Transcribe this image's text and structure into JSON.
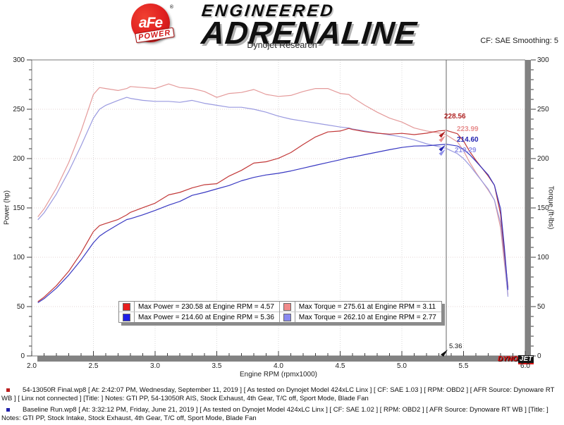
{
  "header": {
    "logo": {
      "circle_text": "aFe",
      "reg_mark": "®",
      "banner_text": "POWER",
      "line1": "ENGINEERED",
      "line2": "ADRENALINE"
    },
    "subtitle": "Dynojet Research",
    "smoothing": "CF: SAE Smoothing: 5"
  },
  "chart_data": {
    "type": "line",
    "xlabel": "Engine RPM (rpmx1000)",
    "ylabel_left": "Power (hp)",
    "ylabel_right": "Torque (ft-lbs)",
    "xlim": [
      2.0,
      6.0
    ],
    "ylim_left": [
      0,
      300
    ],
    "ylim_right": [
      0,
      300
    ],
    "grid": "dotted",
    "x_ticks": [
      2.0,
      2.5,
      3.0,
      3.5,
      4.0,
      4.5,
      5.0,
      5.5,
      6.0
    ],
    "x_tick_labels": [
      "2.0",
      "2.5",
      "3.0",
      "3.5",
      "4.0",
      "4.5",
      "5.0",
      "5.5",
      "6.0"
    ],
    "y_ticks": [
      0,
      50,
      100,
      150,
      200,
      250,
      300
    ],
    "y_tick_labels": [
      "0",
      "50",
      "100",
      "150",
      "200",
      "250",
      "300"
    ],
    "x": [
      2.05,
      2.1,
      2.2,
      2.3,
      2.4,
      2.5,
      2.55,
      2.6,
      2.7,
      2.77,
      2.8,
      2.9,
      3.0,
      3.11,
      3.2,
      3.3,
      3.4,
      3.5,
      3.6,
      3.7,
      3.8,
      3.9,
      4.0,
      4.1,
      4.2,
      4.3,
      4.4,
      4.5,
      4.57,
      4.6,
      4.7,
      4.8,
      4.9,
      5.0,
      5.1,
      5.2,
      5.3,
      5.36,
      5.45,
      5.5,
      5.55,
      5.6,
      5.7,
      5.75,
      5.8,
      5.83,
      5.86
    ],
    "series": [
      {
        "name": "torque-final",
        "axis": "right",
        "color": "#e49a9a",
        "values": [
          141,
          149,
          170,
          196,
          228,
          265,
          272,
          271,
          269,
          271,
          273,
          272,
          271,
          275.61,
          272,
          271,
          268,
          262,
          266,
          267,
          270,
          265,
          263,
          264,
          268,
          271,
          271,
          266,
          265,
          262,
          254,
          247,
          241,
          237,
          231,
          228,
          226,
          223.99,
          217,
          208,
          196,
          186,
          168,
          158,
          130,
          95,
          62
        ]
      },
      {
        "name": "torque-baseline",
        "axis": "right",
        "color": "#9a9ae0",
        "values": [
          138,
          145,
          164,
          187,
          213,
          241,
          250,
          254,
          259,
          262.1,
          261,
          259,
          258,
          258,
          257,
          259,
          256,
          254,
          252,
          252,
          250,
          247,
          243,
          240,
          238,
          236,
          234,
          232,
          231,
          230,
          228,
          226,
          224,
          222,
          219,
          215,
          212,
          210.29,
          205,
          200,
          193,
          185,
          169,
          158,
          135,
          100,
          60
        ]
      },
      {
        "name": "power-final",
        "axis": "left",
        "color": "#c23838",
        "values": [
          55.0,
          59.6,
          71.2,
          85.8,
          104.2,
          126.1,
          132.1,
          134.2,
          138.3,
          142.9,
          145.5,
          150.2,
          154.8,
          163.2,
          165.7,
          170.3,
          173.5,
          174.6,
          182.3,
          188.1,
          195.4,
          196.8,
          200.3,
          206.1,
          214.3,
          221.9,
          227.0,
          227.9,
          230.58,
          229.5,
          227.3,
          225.7,
          224.8,
          225.6,
          224.3,
          225.7,
          228.1,
          228.56,
          225.2,
          217.8,
          207.1,
          198.3,
          182.3,
          173.0,
          143.6,
          105.5,
          69.2
        ]
      },
      {
        "name": "power-baseline",
        "axis": "left",
        "color": "#3838c2",
        "values": [
          53.9,
          58.0,
          68.7,
          81.9,
          97.3,
          114.7,
          121.4,
          125.7,
          133.2,
          138.2,
          139.1,
          143.0,
          147.4,
          152.8,
          156.6,
          162.7,
          165.7,
          169.3,
          172.7,
          177.5,
          180.9,
          183.4,
          185.1,
          187.4,
          190.3,
          193.2,
          196.0,
          198.8,
          201.0,
          201.4,
          204.0,
          206.5,
          209.0,
          211.3,
          212.7,
          212.9,
          213.9,
          214.6,
          212.7,
          209.4,
          203.9,
          197.3,
          183.4,
          173.0,
          149.1,
          111.0,
          66.9
        ]
      }
    ],
    "cursor": {
      "rpm": 5.36,
      "label": "5.36",
      "point_labels": [
        {
          "text": "228.56",
          "value": 228.56,
          "color": "#b02424"
        },
        {
          "text": "223.99",
          "value": 223.99,
          "color": "#e88f8f"
        },
        {
          "text": "214.60",
          "value": 214.6,
          "color": "#2424b0"
        },
        {
          "text": "210.29",
          "value": 210.29,
          "color": "#8f8fe8"
        }
      ]
    },
    "legend": {
      "rows": [
        {
          "swatch": "#e81e1e",
          "text": "Max Power = 230.58 at Engine RPM = 4.57"
        },
        {
          "swatch": "#1e1ee8",
          "text": "Max Power = 214.60 at Engine RPM = 5.36"
        },
        {
          "swatch": "#f08a8a",
          "text": "Max Torque = 275.61 at Engine RPM = 3.11"
        },
        {
          "swatch": "#8a8af0",
          "text": "Max Torque = 262.10 at Engine RPM = 2.77"
        }
      ]
    }
  },
  "watermark": {
    "dyno": "DYNO",
    "jet": "JET"
  },
  "footnotes": [
    {
      "bullet_color": "#bb2020",
      "text": "54-13050R Final.wp8 [ At: 2:42:07 PM, Wednesday, September 11, 2019 ] [ As tested on Dynojet Model 424xLC Linx ] [ CF: SAE 1.03 ] [ RPM: OBD2 ] [ AFR Source: Dynoware RT WB ] [ Linx not connected ] [Title: ]  Notes: GTI PP, 54-13050R AIS, Stock Exhaust, 4th Gear, T/C off, Sport Mode, Blade Fan"
    },
    {
      "bullet_color": "#2020aa",
      "text": "Baseline Run.wp8 [ At: 3:32:12 PM, Friday, June 21, 2019 ] [ As tested on Dynojet Model 424xLC Linx ] [ CF: SAE 1.02 ] [ RPM: OBD2 ] [ AFR Source: Dynoware RT WB ] [Title: ]  Notes: GTI PP, Stock Intake, Stock Exhaust, 4th Gear, T/C off, Sport Mode, Blade Fan"
    }
  ]
}
